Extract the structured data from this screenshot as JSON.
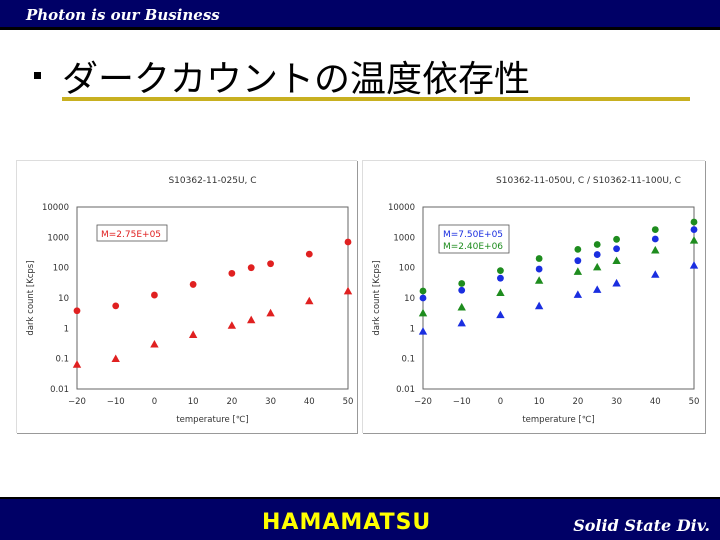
{
  "header": {
    "tagline": "Photon is our Business"
  },
  "slide": {
    "title": "ダークカウントの温度依存性"
  },
  "footer": {
    "brand": "HAMAMATSU",
    "division": "Solid State Div."
  },
  "colors": {
    "bar": "#000066",
    "accent_line": "#c8b020",
    "brand": "#ffff00",
    "red": "#e02020",
    "blue": "#1a2ee0",
    "green": "#1e8c1e"
  },
  "chart_data": [
    {
      "type": "scatter",
      "title": "S10362-11-025U, C",
      "xlabel": "temperature [℃]",
      "ylabel": "dark count [Kcps]",
      "x_ticks": [
        "−20",
        "−10",
        "0",
        "10",
        "20",
        "30",
        "40",
        "50"
      ],
      "y_ticks": [
        "0.01",
        "0.1",
        "1",
        "10",
        "100",
        "1000",
        "10000"
      ],
      "xlim": [
        -20,
        50
      ],
      "ylim": [
        0.01,
        10000
      ],
      "y_scale": "log",
      "annotations": [
        {
          "text": "M=2.75E+05",
          "color": "#e02020"
        }
      ],
      "series": [
        {
          "marker": "circle",
          "color": "#e02020",
          "x": [
            -20,
            -10,
            0,
            10,
            20,
            25,
            30,
            40,
            50
          ],
          "y": [
            3.8,
            5.5,
            12.5,
            28,
            65,
            100,
            135,
            280,
            700
          ]
        },
        {
          "marker": "triangle",
          "color": "#e02020",
          "x": [
            -20,
            -10,
            0,
            10,
            20,
            25,
            30,
            40,
            50
          ],
          "y": [
            0.065,
            0.1,
            0.3,
            0.62,
            1.25,
            1.9,
            3.2,
            8,
            17
          ]
        }
      ]
    },
    {
      "type": "scatter",
      "title": "S10362-11-050U, C  /  S10362-11-100U, C",
      "xlabel": "temperature [℃]",
      "ylabel": "dark count [Kcps]",
      "x_ticks": [
        "−20",
        "−10",
        "0",
        "10",
        "20",
        "30",
        "40",
        "50"
      ],
      "y_ticks": [
        "0.01",
        "0.1",
        "1",
        "10",
        "100",
        "1000",
        "10000"
      ],
      "xlim": [
        -20,
        50
      ],
      "ylim": [
        0.01,
        10000
      ],
      "y_scale": "log",
      "annotations": [
        {
          "text": "M=7.50E+05",
          "color": "#1a2ee0"
        },
        {
          "text": "M=2.40E+06",
          "color": "#1e8c1e"
        }
      ],
      "series": [
        {
          "marker": "circle",
          "color": "#1e8c1e",
          "x": [
            -20,
            -10,
            0,
            10,
            20,
            25,
            30,
            40,
            50
          ],
          "y": [
            17,
            30,
            80,
            200,
            400,
            580,
            860,
            1800,
            3200
          ]
        },
        {
          "marker": "circle",
          "color": "#1a2ee0",
          "x": [
            -20,
            -10,
            0,
            10,
            20,
            25,
            30,
            40,
            50
          ],
          "y": [
            10,
            18,
            45,
            90,
            170,
            270,
            420,
            880,
            1800
          ]
        },
        {
          "marker": "triangle",
          "color": "#1e8c1e",
          "x": [
            -20,
            -10,
            0,
            10,
            20,
            25,
            30,
            40,
            50
          ],
          "y": [
            3.2,
            5,
            15,
            38,
            75,
            105,
            170,
            380,
            800
          ]
        },
        {
          "marker": "triangle",
          "color": "#1a2ee0",
          "x": [
            -20,
            -10,
            0,
            10,
            20,
            25,
            30,
            40,
            50
          ],
          "y": [
            0.8,
            1.5,
            2.8,
            5.5,
            13,
            19,
            31,
            60,
            120
          ]
        }
      ]
    }
  ]
}
